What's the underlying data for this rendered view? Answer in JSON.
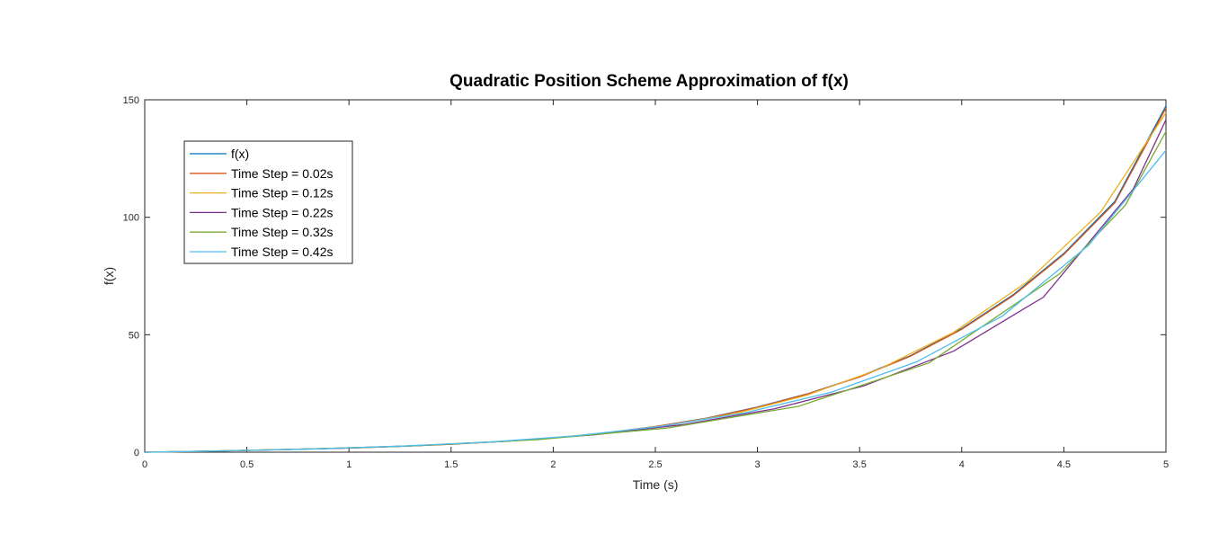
{
  "chart_data": {
    "type": "line",
    "title": "Quadratic Position Scheme Approximation of f(x)",
    "xlabel": "Time (s)",
    "ylabel": "f(x)",
    "xlim": [
      0,
      5
    ],
    "ylim": [
      0,
      150
    ],
    "xticks": [
      "0",
      "0.5",
      "1",
      "1.5",
      "2",
      "2.5",
      "3",
      "3.5",
      "4",
      "4.5",
      "5"
    ],
    "yticks": [
      "0",
      "50",
      "100",
      "150"
    ],
    "grid": false,
    "legend_position": "top-left",
    "series": [
      {
        "name": "f(x)",
        "color": "#0072BD",
        "x": [
          0,
          0.25,
          0.5,
          0.75,
          1,
          1.25,
          1.5,
          1.75,
          2,
          2.25,
          2.5,
          2.75,
          3,
          3.25,
          3.5,
          3.75,
          4,
          4.25,
          4.5,
          4.75,
          5
        ],
        "y": [
          0,
          0.3,
          0.8,
          1.3,
          1.8,
          2.5,
          3.4,
          4.6,
          6.1,
          8.1,
          10.9,
          14.5,
          19.2,
          25.0,
          32.2,
          41.1,
          52.6,
          66.9,
          84.6,
          106.8,
          147.4
        ]
      },
      {
        "name": "Time Step = 0.02s",
        "color": "#D95319",
        "x": [
          0,
          0.25,
          0.5,
          0.75,
          1,
          1.25,
          1.5,
          1.75,
          2,
          2.25,
          2.5,
          2.75,
          3,
          3.25,
          3.5,
          3.75,
          4,
          4.25,
          4.5,
          4.75,
          5
        ],
        "y": [
          0,
          0.3,
          0.8,
          1.3,
          1.8,
          2.5,
          3.4,
          4.6,
          6.1,
          8.1,
          10.9,
          14.4,
          19.1,
          24.9,
          32.0,
          40.9,
          52.3,
          66.5,
          84.2,
          106.2,
          146.5
        ]
      },
      {
        "name": "Time Step = 0.12s",
        "color": "#EDB120",
        "x": [
          0,
          0.36,
          0.72,
          1.08,
          1.44,
          1.8,
          2.16,
          2.52,
          2.88,
          3.24,
          3.6,
          3.96,
          4.32,
          4.68,
          5.0
        ],
        "y": [
          0,
          0.5,
          1.2,
          2.0,
          3.1,
          4.8,
          7.3,
          10.9,
          16.2,
          24.2,
          35.5,
          51.0,
          72.5,
          102.2,
          144.5
        ]
      },
      {
        "name": "Time Step = 0.22s",
        "color": "#7E2F8E",
        "x": [
          0,
          0.44,
          0.88,
          1.32,
          1.76,
          2.2,
          2.64,
          3.08,
          3.52,
          3.96,
          4.4,
          4.84,
          5.0
        ],
        "y": [
          0,
          0.6,
          1.5,
          2.7,
          4.6,
          7.4,
          11.8,
          18.4,
          28.2,
          43.0,
          66.0,
          112.0,
          141.5
        ]
      },
      {
        "name": "Time Step = 0.32s",
        "color": "#77AC30",
        "x": [
          0,
          0.64,
          1.28,
          1.92,
          2.56,
          3.2,
          3.84,
          4.48,
          4.8,
          5.0
        ],
        "y": [
          0,
          1.0,
          2.6,
          5.3,
          10.3,
          19.5,
          38.0,
          76.0,
          105.0,
          136.5
        ]
      },
      {
        "name": "Time Step = 0.42s",
        "color": "#4DBEEE",
        "x": [
          0,
          0.42,
          0.84,
          1.26,
          1.68,
          2.1,
          2.52,
          2.94,
          3.36,
          3.78,
          4.2,
          4.62,
          5.0
        ],
        "y": [
          0,
          0.6,
          1.4,
          2.6,
          4.3,
          6.9,
          10.9,
          16.8,
          25.5,
          38.5,
          58.0,
          88.0,
          128.5
        ]
      }
    ]
  }
}
